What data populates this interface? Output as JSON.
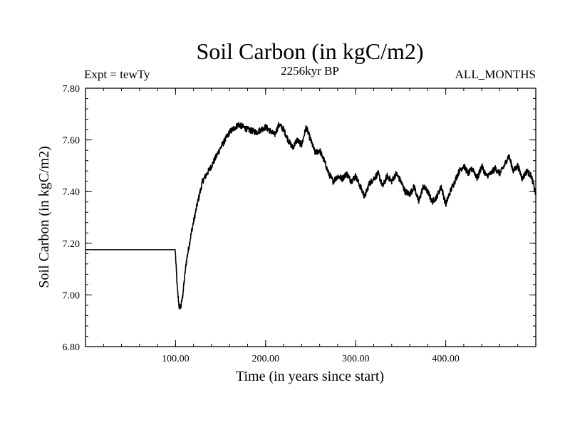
{
  "chart_data": {
    "type": "line",
    "title": "Soil Carbon (in kgC/m2)",
    "subtitle_left": "Expt = tewTy",
    "subtitle_center": "2256kyr BP",
    "subtitle_right": "ALL_MONTHS",
    "xlabel": "Time (in years since start)",
    "ylabel": "Soil Carbon (in kgC/m2)",
    "xlim": [
      0,
      500
    ],
    "ylim": [
      6.8,
      7.8
    ],
    "x_ticks": [
      100,
      200,
      300,
      400
    ],
    "x_tick_labels": [
      "100.00",
      "200.00",
      "300.00",
      "400.00"
    ],
    "y_ticks": [
      6.8,
      7.0,
      7.2,
      7.4,
      7.6,
      7.8
    ],
    "y_tick_labels": [
      "6.80",
      "7.00",
      "7.20",
      "7.40",
      "7.60",
      "7.80"
    ],
    "x_minor_step": 20,
    "y_minor_step": 0.04,
    "series": [
      {
        "name": "Soil Carbon",
        "color": "#000000",
        "noise_amplitude": 0.012,
        "x": [
          0,
          99.5,
          100,
          102,
          104,
          106,
          108,
          112,
          118,
          124,
          130,
          140,
          150,
          160,
          170,
          180,
          190,
          200,
          210,
          215,
          220,
          225,
          230,
          235,
          240,
          245,
          250,
          255,
          260,
          265,
          270,
          275,
          280,
          285,
          290,
          295,
          300,
          305,
          310,
          315,
          320,
          325,
          330,
          335,
          340,
          345,
          350,
          355,
          360,
          365,
          370,
          375,
          380,
          385,
          390,
          395,
          400,
          405,
          410,
          415,
          420,
          425,
          430,
          435,
          440,
          445,
          450,
          455,
          460,
          465,
          470,
          475,
          480,
          485,
          490,
          495,
          500
        ],
        "values": [
          7.175,
          7.175,
          7.15,
          7.02,
          6.955,
          6.955,
          7.0,
          7.13,
          7.25,
          7.35,
          7.44,
          7.5,
          7.57,
          7.63,
          7.66,
          7.64,
          7.63,
          7.65,
          7.62,
          7.66,
          7.64,
          7.6,
          7.57,
          7.6,
          7.58,
          7.65,
          7.6,
          7.55,
          7.56,
          7.52,
          7.47,
          7.44,
          7.46,
          7.45,
          7.47,
          7.44,
          7.46,
          7.42,
          7.38,
          7.43,
          7.45,
          7.47,
          7.42,
          7.46,
          7.44,
          7.47,
          7.44,
          7.4,
          7.39,
          7.42,
          7.36,
          7.42,
          7.4,
          7.36,
          7.38,
          7.42,
          7.35,
          7.4,
          7.44,
          7.48,
          7.5,
          7.47,
          7.49,
          7.45,
          7.5,
          7.46,
          7.47,
          7.49,
          7.47,
          7.5,
          7.54,
          7.48,
          7.5,
          7.45,
          7.48,
          7.46,
          7.39
        ]
      }
    ]
  }
}
